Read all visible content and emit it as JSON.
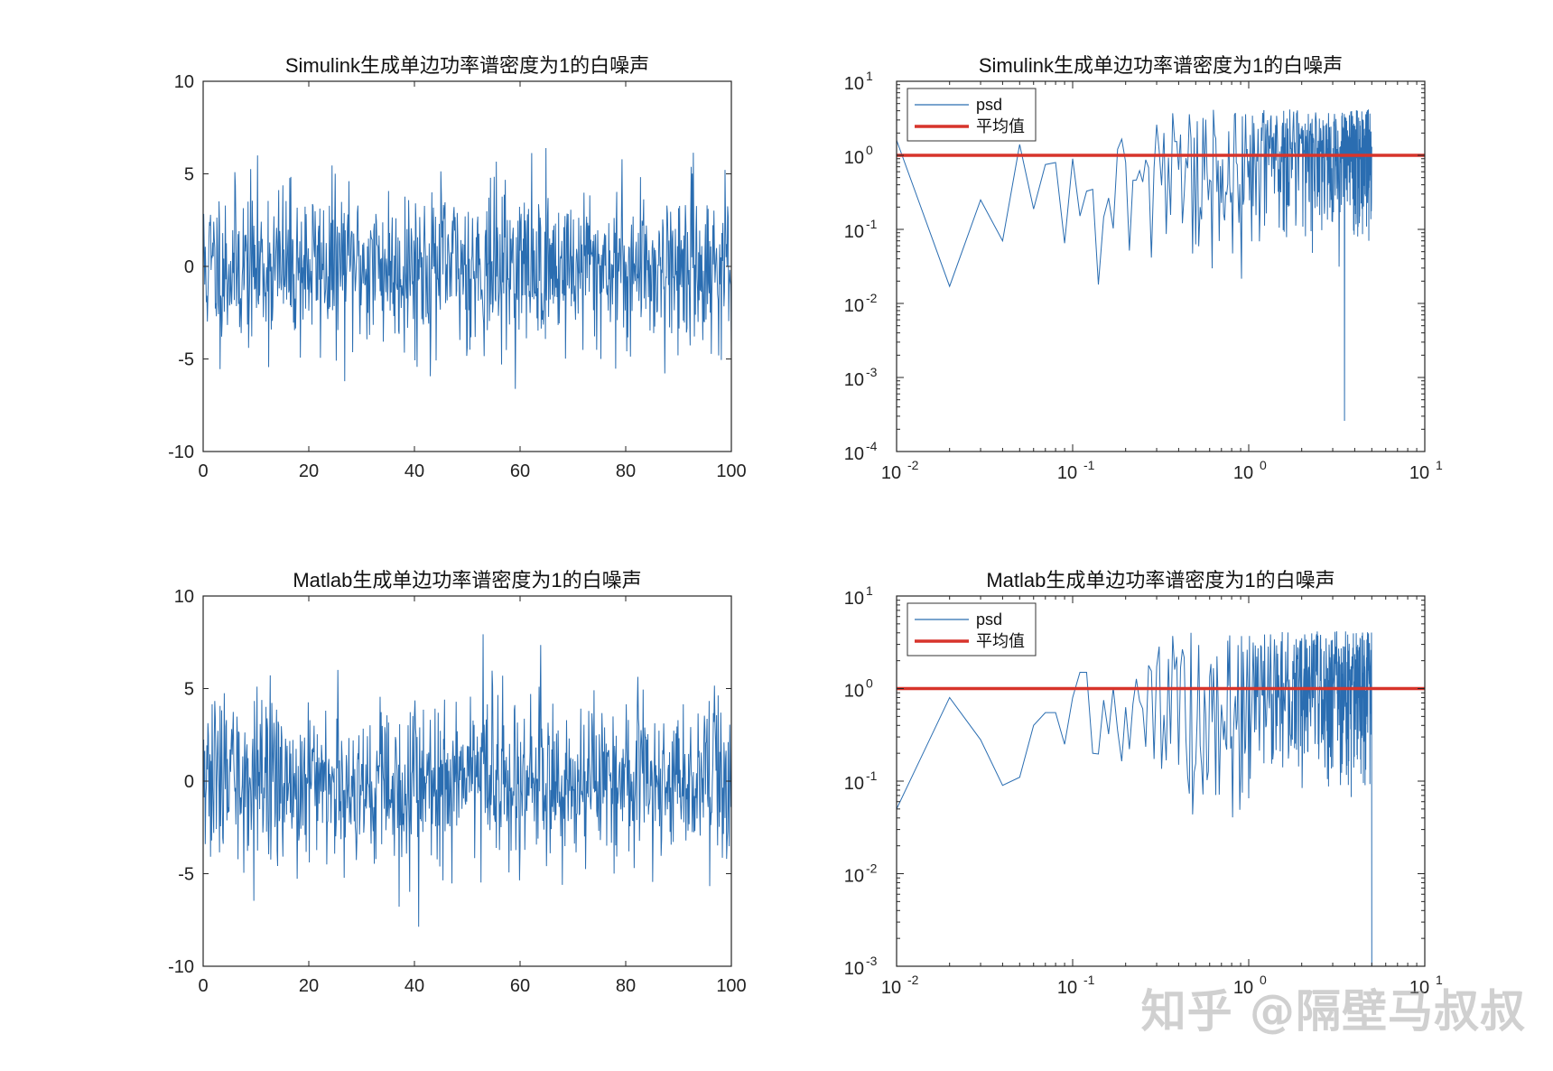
{
  "colors": {
    "series": "#2a6db1",
    "mean": "#d7342b",
    "axis": "#262626"
  },
  "watermark": "知乎 @隔壁马叔叔",
  "chart_data": [
    {
      "type": "line",
      "title": "Simulink生成单边功率谱密度为1的白噪声",
      "xlim": [
        0,
        100
      ],
      "ylim": [
        -10,
        10
      ],
      "xticks": [
        "0",
        "20",
        "40",
        "60",
        "80",
        "100"
      ],
      "yticks": [
        "-10",
        "-5",
        "0",
        "5",
        "10"
      ],
      "yscale": "linear",
      "grid": false,
      "series": [
        {
          "n": 1000,
          "distribution": "gaussian",
          "std": 2.2,
          "seed": 11
        }
      ]
    },
    {
      "type": "line",
      "title": "Simulink生成单边功率谱密度为1的白噪声",
      "xscale": "log",
      "yscale": "log",
      "xlim": [
        0.01,
        10
      ],
      "ylim": [
        0.0001,
        10
      ],
      "xtick_exps": [
        "-2",
        "-1",
        "0",
        "1"
      ],
      "ytick_exps": [
        "-4",
        "-3",
        "-2",
        "-1",
        "0",
        "1"
      ],
      "legend": {
        "position": "top-left",
        "entries": [
          "psd",
          "平均值"
        ]
      },
      "grid": false,
      "series": [
        {
          "name": "psd",
          "x_range": [
            0.01,
            5
          ],
          "step": 0.01,
          "anchors": [
            [
              0.01,
              1.6
            ],
            [
              0.02,
              0.017
            ],
            [
              0.03,
              0.25
            ],
            [
              0.04,
              0.07
            ],
            [
              0.05,
              1.4
            ],
            [
              0.07,
              0.75
            ],
            [
              0.08,
              0.8
            ],
            [
              0.09,
              0.065
            ],
            [
              0.1,
              0.9
            ],
            [
              0.14,
              0.018
            ]
          ],
          "outliers": [
            [
              3.5,
              0.00026
            ]
          ],
          "seed": 21
        },
        {
          "name": "平均值",
          "value": 1
        }
      ]
    },
    {
      "type": "line",
      "title": "Matlab生成单边功率谱密度为1的白噪声",
      "xlim": [
        0,
        100
      ],
      "ylim": [
        -10,
        10
      ],
      "xticks": [
        "0",
        "20",
        "40",
        "60",
        "80",
        "100"
      ],
      "yticks": [
        "-10",
        "-5",
        "0",
        "5",
        "10"
      ],
      "yscale": "linear",
      "grid": false,
      "series": [
        {
          "n": 1000,
          "distribution": "gaussian",
          "std": 2.2,
          "seed": 33
        }
      ]
    },
    {
      "type": "line",
      "title": "Matlab生成单边功率谱密度为1的白噪声",
      "xscale": "log",
      "yscale": "log",
      "xlim": [
        0.01,
        10
      ],
      "ylim": [
        0.001,
        10
      ],
      "xtick_exps": [
        "-2",
        "-1",
        "0",
        "1"
      ],
      "ytick_exps": [
        "-3",
        "-2",
        "-1",
        "0",
        "1"
      ],
      "legend": {
        "position": "top-left",
        "entries": [
          "psd",
          "平均值"
        ]
      },
      "grid": false,
      "series": [
        {
          "name": "psd",
          "x_range": [
            0.01,
            5
          ],
          "step": 0.01,
          "anchors": [
            [
              0.01,
              0.05
            ],
            [
              0.02,
              0.8
            ],
            [
              0.03,
              0.28
            ],
            [
              0.04,
              0.09
            ],
            [
              0.05,
              0.11
            ],
            [
              0.06,
              0.4
            ],
            [
              0.07,
              0.55
            ],
            [
              0.08,
              0.55
            ],
            [
              0.09,
              0.25
            ],
            [
              0.1,
              0.8
            ],
            [
              0.11,
              1.5
            ],
            [
              0.12,
              1.5
            ],
            [
              0.13,
              0.2
            ]
          ],
          "outliers": [
            [
              5.0,
              0.001
            ]
          ],
          "seed": 45
        },
        {
          "name": "平均值",
          "value": 1
        }
      ]
    }
  ]
}
